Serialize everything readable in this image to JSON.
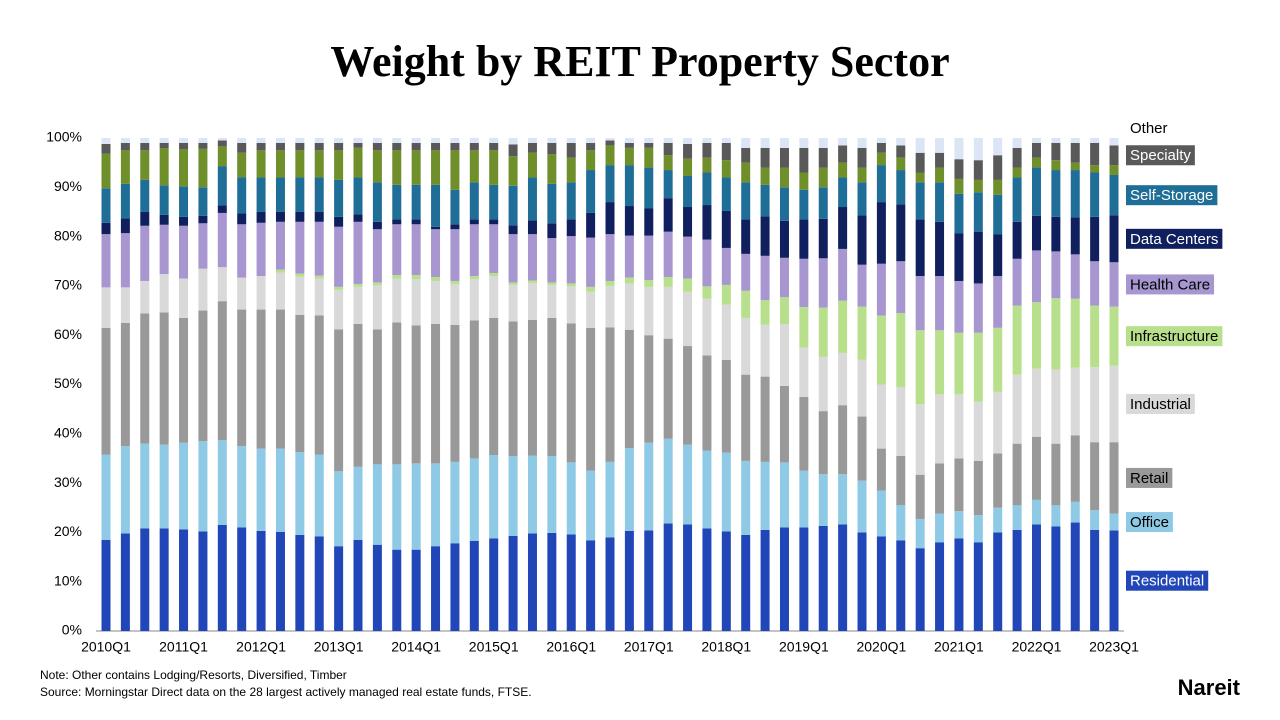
{
  "chart_data": {
    "type": "stacked-bar",
    "title": "Weight by REIT Property Sector",
    "categories": [
      "2010Q1",
      null,
      null,
      null,
      "2011Q1",
      null,
      null,
      null,
      "2012Q1",
      null,
      null,
      null,
      "2013Q1",
      null,
      null,
      null,
      "2014Q1",
      null,
      null,
      null,
      "2015Q1",
      null,
      null,
      null,
      "2016Q1",
      null,
      null,
      null,
      "2017Q1",
      null,
      null,
      null,
      "2018Q1",
      null,
      null,
      null,
      "2019Q1",
      null,
      null,
      null,
      "2020Q1",
      null,
      null,
      null,
      "2021Q1",
      null,
      null,
      null,
      "2022Q1",
      null,
      null,
      null,
      "2023Q1"
    ],
    "series": [
      {
        "name": "Residential",
        "color": "#2146b8",
        "values": [
          18.5,
          19.8,
          20.8,
          20.8,
          20.6,
          20.2,
          21.5,
          21,
          20.3,
          20.1,
          19.5,
          19.2,
          17.2,
          18.5,
          17.5,
          16.5,
          16.5,
          17.2,
          17.8,
          18.3,
          18.8,
          19.3,
          19.8,
          19.9,
          19.6,
          18.4,
          19,
          20.3,
          20.4,
          21.8,
          21.6,
          20.8,
          20.2,
          19.5,
          20.5,
          21,
          21,
          21.3,
          21.6,
          20,
          19.2,
          18.4,
          16.8,
          18,
          18.8,
          18,
          20,
          20.5,
          21.6,
          21.2,
          22,
          20.5,
          20.4
        ]
      },
      {
        "name": "Office",
        "color": "#8ecae6",
        "values": [
          17.3,
          17.7,
          17.2,
          17,
          17.6,
          18.3,
          17.2,
          16.5,
          16.7,
          16.9,
          16.8,
          16.6,
          15.2,
          14.8,
          16.3,
          17.3,
          17.5,
          16.8,
          16.5,
          16.7,
          16.9,
          16.2,
          15.8,
          15.6,
          14.6,
          14.1,
          15.3,
          16.8,
          17.8,
          17.2,
          16.2,
          15.8,
          16,
          15,
          13.8,
          13.2,
          11.5,
          10.5,
          10.2,
          10.5,
          9.3,
          7.1,
          5.9,
          5.8,
          5.5,
          5.5,
          5,
          5,
          5,
          4.3,
          4.2,
          4,
          3.4
        ]
      },
      {
        "name": "Retail",
        "color": "#999999",
        "values": [
          25.7,
          25,
          26.4,
          26.8,
          25.3,
          26.5,
          28.2,
          27.7,
          28.2,
          28.2,
          27.8,
          28.2,
          28.8,
          29,
          27.4,
          28.8,
          28,
          28.3,
          27.8,
          28,
          27.8,
          27.3,
          27.5,
          28,
          28.2,
          29,
          27.3,
          24,
          21.8,
          20.3,
          20,
          19.3,
          18.8,
          17.5,
          17.3,
          15.5,
          15,
          12.8,
          14,
          13,
          8.5,
          10,
          9,
          10.2,
          10.7,
          11,
          11,
          12.5,
          12.8,
          12.5,
          13.5,
          13.8,
          14.5
        ]
      },
      {
        "name": "Industrial",
        "color": "#d9d9d9",
        "values": [
          8.2,
          7.2,
          6.6,
          7.8,
          8,
          8.5,
          6.9,
          6.5,
          6.8,
          7.5,
          7.8,
          7.5,
          8,
          7.5,
          8.9,
          8.9,
          9.4,
          8.7,
          8.3,
          8.4,
          8.5,
          7.4,
          7.5,
          6.7,
          7.5,
          7.3,
          8.4,
          9.4,
          9.8,
          10.5,
          11,
          11.5,
          11.2,
          11.5,
          10.5,
          12.5,
          10,
          11,
          10.6,
          11.5,
          13,
          14,
          14.3,
          14,
          13,
          12,
          12.5,
          14,
          13.8,
          15,
          13.7,
          15.2,
          15.5
        ]
      },
      {
        "name": "Infrastructure",
        "color": "#b8e08c",
        "values": [
          0,
          0,
          0,
          0,
          0,
          0,
          0,
          0,
          0,
          0.6,
          0.6,
          0.6,
          0.6,
          0.6,
          0.6,
          0.7,
          0.8,
          0.8,
          0.6,
          0.6,
          0.6,
          0.5,
          0.5,
          0.5,
          0.6,
          1,
          1,
          1.2,
          1.4,
          2,
          2.7,
          2.5,
          4,
          5.5,
          5,
          5.5,
          8.2,
          10,
          10.6,
          10.8,
          14,
          15,
          15,
          13,
          12.5,
          14,
          13,
          14,
          13.5,
          14.5,
          14,
          12.5,
          12
        ]
      },
      {
        "name": "Health Care",
        "color": "#a796d0",
        "values": [
          10.8,
          11,
          11.2,
          10,
          10.7,
          9.2,
          11,
          10.8,
          10.8,
          9.7,
          10.5,
          10.9,
          12.2,
          12.6,
          10.8,
          10.3,
          10.3,
          9.7,
          10.5,
          10.5,
          9.9,
          9.8,
          9.4,
          9,
          9.6,
          10,
          9.5,
          8.5,
          9,
          9.2,
          8.5,
          9.5,
          7.5,
          7.5,
          9,
          8,
          9.8,
          10,
          10.5,
          8.5,
          10.5,
          10.5,
          11,
          11,
          10.5,
          10,
          10.5,
          9.5,
          10.5,
          9.5,
          9,
          9,
          9
        ]
      },
      {
        "name": "Data Centers",
        "color": "#10205e",
        "values": [
          2.3,
          3,
          2.8,
          2,
          1.8,
          1.5,
          1.5,
          2.2,
          2.2,
          2,
          2,
          2,
          2,
          1.5,
          1.5,
          1,
          1,
          0.5,
          1,
          1,
          1,
          1.8,
          2.8,
          3,
          3.4,
          5,
          6.5,
          6,
          5.5,
          6.8,
          6,
          7,
          7.5,
          7,
          8,
          7.5,
          8,
          8,
          8.5,
          10,
          12.5,
          11.5,
          11.5,
          11,
          9.7,
          10.5,
          8.5,
          7.5,
          7,
          7,
          7.5,
          9,
          9.5
        ]
      },
      {
        "name": "Self-Storage",
        "color": "#1f6e98",
        "values": [
          7,
          7,
          6.5,
          6,
          6.2,
          5.8,
          8,
          7.3,
          7,
          7,
          7,
          7,
          7.5,
          7.5,
          8,
          7,
          7,
          8.5,
          7,
          7.5,
          7,
          8,
          8.7,
          8,
          7.5,
          8.7,
          7.5,
          8.3,
          8.3,
          5.7,
          6.3,
          6.6,
          6.8,
          7.5,
          6.4,
          6.8,
          6,
          6.4,
          6,
          6.7,
          7.5,
          7,
          7.5,
          8,
          8,
          8,
          8,
          9,
          9.8,
          9.5,
          9.6,
          9,
          8.2
        ]
      },
      {
        "name": null,
        "color": "#6e8f2a",
        "values": [
          7,
          6.8,
          6,
          7.5,
          7.5,
          7.8,
          4,
          5,
          5.5,
          5.5,
          5.5,
          5.5,
          6,
          6,
          6.5,
          7,
          7,
          7,
          8,
          6.5,
          7,
          6,
          5,
          6,
          5,
          4,
          4,
          3.5,
          4,
          3,
          3.5,
          3,
          3.5,
          4,
          3.5,
          4,
          3.5,
          4,
          3,
          3,
          2.5,
          2.5,
          2,
          3,
          3,
          2.5,
          3,
          2,
          2,
          2,
          1.5,
          1.5,
          2
        ]
      },
      {
        "name": "Specialty",
        "color": "#595959",
        "values": [
          2,
          1.5,
          1.5,
          1.1,
          1.3,
          1.2,
          1.2,
          2,
          1.5,
          1.5,
          1.5,
          1.5,
          1.5,
          1,
          1.5,
          1.5,
          1.5,
          1.5,
          1.5,
          1.5,
          1.5,
          2.4,
          2,
          2.3,
          3,
          1.5,
          1,
          1,
          1,
          2.5,
          3,
          3,
          3.5,
          3,
          4,
          4,
          5,
          4,
          3.5,
          4,
          2,
          2.5,
          4,
          3,
          4,
          4,
          5,
          4,
          3,
          3.5,
          4,
          4.5,
          4
        ]
      },
      {
        "name": "Other",
        "color": "#dbe5f6",
        "values": [
          1.2,
          1,
          1,
          1,
          1,
          1,
          0.5,
          1,
          1,
          1,
          1,
          1,
          1,
          1,
          1,
          1,
          1,
          1,
          1,
          1,
          1,
          1.3,
          1,
          1,
          1,
          1,
          0.5,
          1,
          1,
          1,
          1.2,
          1,
          1,
          2,
          2,
          2,
          2,
          2,
          1.5,
          2,
          1,
          1.5,
          3,
          3,
          4.3,
          4.5,
          3.5,
          2,
          1,
          1,
          1,
          1,
          1.5
        ]
      }
    ],
    "ylim": [
      0,
      100
    ],
    "yticks": [
      {
        "value": 0,
        "label": "0%"
      },
      {
        "value": 10,
        "label": "10%"
      },
      {
        "value": 20,
        "label": "20%"
      },
      {
        "value": 30,
        "label": "30%"
      },
      {
        "value": 40,
        "label": "40%"
      },
      {
        "value": 50,
        "label": "50%"
      },
      {
        "value": 60,
        "label": "60%"
      },
      {
        "value": 70,
        "label": "70%"
      },
      {
        "value": 80,
        "label": "80%"
      },
      {
        "value": 90,
        "label": "90%"
      },
      {
        "value": 100,
        "label": "100%"
      }
    ],
    "grid": false,
    "legend": "right",
    "notes": [
      "Note: Other contains Lodging/Resorts, Diversified, Timber",
      "Source: Morningstar Direct data on the 28 largest actively managed real estate funds, FTSE."
    ],
    "logo": "Nareit"
  }
}
